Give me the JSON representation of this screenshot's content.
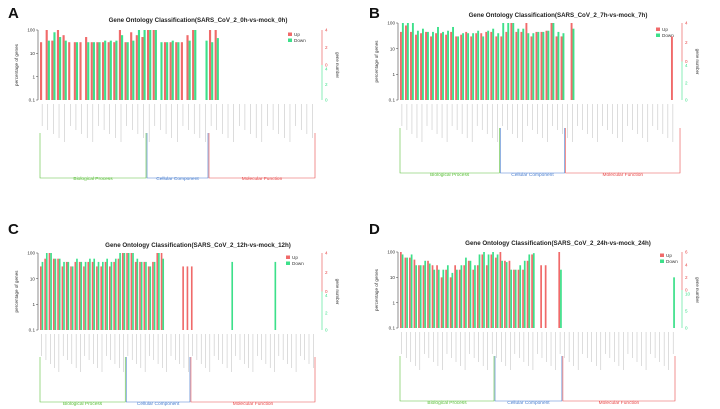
{
  "colors": {
    "up": "#f06a6a",
    "down": "#3de08a",
    "bp": "#5bbf3a",
    "cc": "#4a7fd0",
    "mf": "#e84a4a",
    "axis_left": "#333333",
    "axis_right_top": "#e84a4a",
    "axis_right_bottom": "#3de08a"
  },
  "panels": [
    {
      "letter": "A"
    },
    {
      "letter": "B"
    },
    {
      "letter": "C"
    },
    {
      "letter": "D"
    }
  ],
  "chart_data": [
    {
      "type": "bar",
      "title": "Gene Ontology Classification(SARS_CoV_2_0h-vs-mock_0h)",
      "ylabel": "percentage of genes",
      "ylabel_right": "gene number",
      "yscale": "log",
      "ylim": [
        0.1,
        100
      ],
      "yticks": [
        "100",
        "10",
        "1",
        "0.1"
      ],
      "yticks_right_up": [
        "4",
        "2",
        "0"
      ],
      "yticks_right_down": [
        "4",
        "2",
        "0"
      ],
      "legend": [
        "Up",
        "Down"
      ],
      "groups": [
        {
          "name": "Biological Process",
          "start": 0,
          "end": 18
        },
        {
          "name": "Cellular Component",
          "start": 19,
          "end": 29
        },
        {
          "name": "Molecular Function",
          "start": 30,
          "end": 48
        }
      ],
      "series": [
        {
          "name": "Up",
          "values": [
            30,
            100,
            35,
            100,
            60,
            30,
            30,
            30,
            50,
            30,
            30,
            30,
            30,
            30,
            100,
            30,
            80,
            60,
            50,
            100,
            100,
            0,
            30,
            30,
            30,
            30,
            60,
            100,
            0,
            0,
            100,
            100,
            0,
            0,
            0,
            0,
            0,
            0,
            0,
            0,
            0,
            0,
            0,
            0,
            0,
            0,
            0,
            0,
            0
          ]
        },
        {
          "name": "Down",
          "values": [
            0,
            35,
            80,
            50,
            35,
            0,
            30,
            0,
            30,
            30,
            30,
            35,
            35,
            35,
            60,
            30,
            35,
            100,
            100,
            100,
            100,
            30,
            30,
            35,
            30,
            0,
            35,
            100,
            0,
            35,
            30,
            45,
            0,
            0,
            0,
            0,
            0,
            0,
            0,
            0,
            0,
            0,
            0,
            0,
            0,
            0,
            0,
            0,
            0
          ]
        }
      ]
    },
    {
      "type": "bar",
      "title": "Gene Ontology Classification(SARS_CoV_2_7h-vs-mock_7h)",
      "ylabel": "percentage of genes",
      "ylabel_right": "gene number",
      "yscale": "log",
      "ylim": [
        0.1,
        100
      ],
      "yticks": [
        "100",
        "10",
        "1",
        "0.1"
      ],
      "yticks_right_up": [
        "4",
        "2",
        "0"
      ],
      "yticks_right_down": [
        "4",
        "2",
        "0"
      ],
      "legend": [
        "Up",
        "Down"
      ],
      "groups": [
        {
          "name": "Biological Process",
          "start": 0,
          "end": 19
        },
        {
          "name": "Cellular Component",
          "start": 20,
          "end": 32
        },
        {
          "name": "Molecular Function",
          "start": 33,
          "end": 55
        }
      ],
      "series": [
        {
          "name": "Up",
          "values": [
            45,
            80,
            45,
            35,
            40,
            45,
            30,
            40,
            40,
            35,
            45,
            30,
            35,
            45,
            30,
            40,
            40,
            45,
            45,
            30,
            30,
            45,
            100,
            45,
            45,
            100,
            30,
            45,
            45,
            50,
            100,
            30,
            30,
            0,
            100,
            0,
            0,
            0,
            0,
            0,
            0,
            0,
            0,
            0,
            0,
            0,
            0,
            0,
            0,
            0,
            0,
            0,
            0,
            0,
            30
          ]
        },
        {
          "name": "Down",
          "values": [
            100,
            100,
            100,
            50,
            60,
            45,
            45,
            70,
            45,
            50,
            70,
            30,
            40,
            40,
            40,
            50,
            30,
            50,
            60,
            40,
            100,
            100,
            100,
            60,
            60,
            40,
            40,
            45,
            45,
            50,
            100,
            45,
            40,
            0,
            60,
            0,
            0,
            0,
            0,
            0,
            0,
            0,
            0,
            0,
            0,
            0,
            0,
            0,
            0,
            0,
            0,
            0,
            0,
            0,
            0
          ]
        }
      ]
    },
    {
      "type": "bar",
      "title": "Gene Ontology Classification(SARS_CoV_2_12h-vs-mock_12h)",
      "ylabel": "percentage of genes",
      "ylabel_right": "gene number",
      "yscale": "log",
      "ylim": [
        0.1,
        100
      ],
      "yticks": [
        "100",
        "10",
        "1",
        "0.1"
      ],
      "yticks_right_up": [
        "4",
        "2",
        "0"
      ],
      "yticks_right_down": [
        "4",
        "2",
        "0"
      ],
      "legend": [
        "Up",
        "Down"
      ],
      "groups": [
        {
          "name": "Biological Process",
          "start": 0,
          "end": 19
        },
        {
          "name": "Cellular Component",
          "start": 20,
          "end": 34
        },
        {
          "name": "Molecular Function",
          "start": 35,
          "end": 63
        }
      ],
      "series": [
        {
          "name": "Up",
          "values": [
            30,
            60,
            100,
            60,
            60,
            30,
            45,
            30,
            45,
            45,
            30,
            45,
            45,
            30,
            30,
            45,
            30,
            45,
            60,
            100,
            100,
            100,
            45,
            45,
            45,
            30,
            45,
            100,
            100,
            0,
            0,
            0,
            0,
            30,
            30,
            30,
            0,
            0,
            0,
            0,
            0,
            0,
            0,
            0,
            0,
            0,
            0,
            0,
            0,
            0,
            0,
            0,
            0,
            0,
            0,
            0,
            0,
            0,
            0,
            0,
            0,
            0,
            0,
            0
          ]
        },
        {
          "name": "Down",
          "values": [
            45,
            100,
            100,
            60,
            60,
            45,
            45,
            30,
            60,
            45,
            45,
            60,
            60,
            45,
            45,
            60,
            45,
            60,
            100,
            100,
            100,
            100,
            60,
            45,
            45,
            30,
            45,
            100,
            60,
            0,
            0,
            0,
            0,
            0,
            0,
            0,
            0,
            0,
            0,
            0,
            0,
            0,
            0,
            0,
            45,
            0,
            0,
            0,
            0,
            0,
            0,
            0,
            0,
            0,
            45,
            0,
            0,
            0,
            0,
            0,
            0,
            0,
            0,
            0
          ]
        }
      ]
    },
    {
      "type": "bar",
      "title": "Gene Ontology Classification(SARS_CoV_2_24h-vs-mock_24h)",
      "ylabel": "percentage of genes",
      "ylabel_right": "gene number",
      "yscale": "log",
      "ylim": [
        0.1,
        100
      ],
      "yticks": [
        "100",
        "10",
        "1",
        "0.1"
      ],
      "yticks_right_up": [
        "6",
        "4",
        "2",
        "0"
      ],
      "yticks_right_down": [
        "10",
        "5",
        "0"
      ],
      "legend": [
        "Up",
        "Down"
      ],
      "groups": [
        {
          "name": "Biological Process",
          "start": 0,
          "end": 20
        },
        {
          "name": "Cellular Component",
          "start": 21,
          "end": 35
        },
        {
          "name": "Molecular Function",
          "start": 36,
          "end": 60
        }
      ],
      "series": [
        {
          "name": "Up",
          "values": [
            100,
            60,
            60,
            50,
            30,
            30,
            45,
            30,
            30,
            10,
            20,
            10,
            30,
            20,
            30,
            45,
            20,
            30,
            80,
            30,
            80,
            60,
            100,
            45,
            45,
            20,
            20,
            20,
            45,
            80,
            0,
            30,
            30,
            0,
            0,
            100,
            0,
            0,
            0,
            0,
            0,
            0,
            0,
            0,
            0,
            0,
            0,
            0,
            0,
            0,
            0,
            0,
            0,
            0,
            0,
            0,
            0,
            0,
            0,
            0,
            0
          ]
        },
        {
          "name": "Down",
          "values": [
            80,
            60,
            80,
            30,
            30,
            45,
            35,
            20,
            20,
            20,
            30,
            15,
            20,
            30,
            60,
            45,
            30,
            80,
            100,
            80,
            100,
            80,
            45,
            40,
            20,
            20,
            30,
            45,
            80,
            90,
            0,
            0,
            0,
            0,
            0,
            20,
            0,
            0,
            0,
            0,
            0,
            0,
            0,
            0,
            0,
            0,
            0,
            0,
            0,
            0,
            0,
            0,
            0,
            0,
            0,
            0,
            0,
            0,
            0,
            0,
            10
          ]
        }
      ]
    }
  ]
}
